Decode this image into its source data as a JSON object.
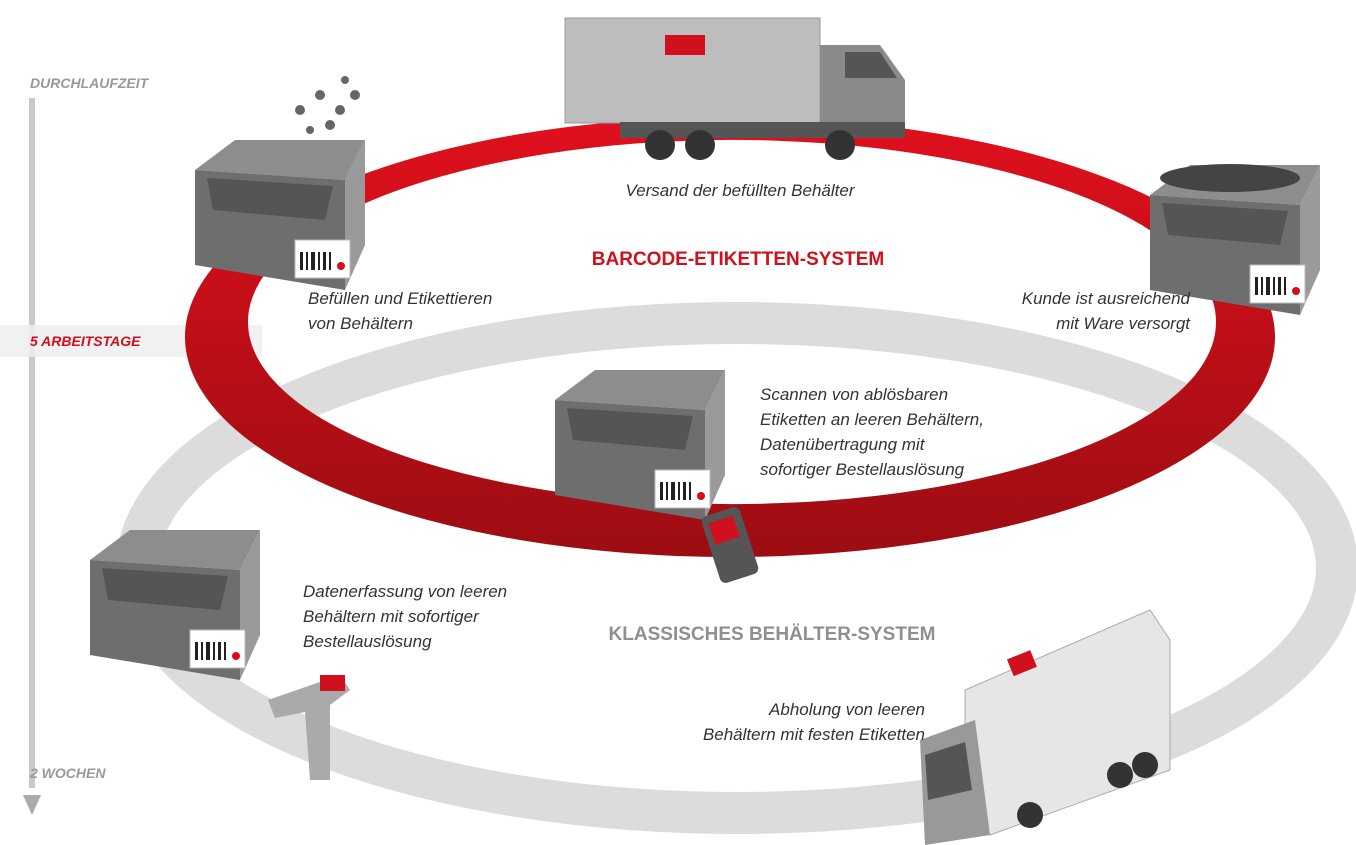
{
  "timeline": {
    "title": "DURCHLAUFZEIT",
    "marker": "5 ARBEITSTAGE",
    "end": "2 WOCHEN"
  },
  "systems": {
    "barcode": "BARCODE-ETIKETTEN-SYSTEM",
    "classic": "KLASSISCHES BEHÄLTER-SYSTEM"
  },
  "steps": {
    "shipping": [
      "Versand der befüllten Behälter"
    ],
    "filling": [
      "Befüllen und Etikettieren",
      "von Behältern"
    ],
    "customer": [
      "Kunde ist ausreichend",
      "mit Ware versorgt"
    ],
    "scanning": [
      "Scannen von ablösbaren",
      "Etiketten an leeren Behältern,",
      "Datenübertragung mit",
      "sofortiger Bestellauslösung"
    ],
    "capture": [
      "Datenerfassung von leeren",
      "Behältern mit sofortiger",
      "Bestellauslösung"
    ],
    "pickup": [
      "Abholung von leeren",
      "Behältern mit festen Etiketten"
    ]
  }
}
